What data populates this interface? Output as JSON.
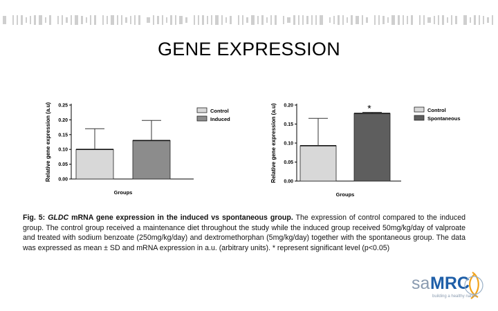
{
  "slide": {
    "title": "GENE EXPRESSION",
    "caption": {
      "label_prefix": "Fig. 5: ",
      "gene": "GLDC",
      "label_suffix": " mRNA gene expression in the induced vs spontaneous group.",
      "body": " The expression of control compared to the induced group. The control group received a maintenance diet throughout the study while the induced group received 50mg/kg/day of valproate and treated with sodium benzoate (250mg/kg/day) and dextromethorphan (5mg/kg/day) together with the spontaneous group. The data was expressed as mean ± SD and mRNA expression in a.u. (arbitrary units). * represent significant level (p<0.05)"
    },
    "logo": {
      "sa": "sa",
      "mrc": "MRC",
      "tagline": "building a healthy nation"
    }
  },
  "colors": {
    "control": "#d8d8d8",
    "induced": "#8c8c8c",
    "spontaneous": "#5e5e5e",
    "logo_blue": "#1f5fa8",
    "banner": "#cfcfcf"
  },
  "chart_data": [
    {
      "type": "bar",
      "categories": [
        "Control",
        "Induced"
      ],
      "values": [
        0.1,
        0.13
      ],
      "errors": [
        0.07,
        0.068
      ],
      "colors": [
        "#d8d8d8",
        "#8c8c8c"
      ],
      "legend": [
        "Control",
        "Induced"
      ],
      "legend_position": "top-right",
      "xlabel": "Groups",
      "ylabel": "Relative gene expression (a.u)",
      "ylim": [
        0,
        0.25
      ],
      "yticks": [
        "0.00",
        "0.05",
        "0.10",
        "0.15",
        "0.20",
        "0.25"
      ],
      "significance": [],
      "grid": false
    },
    {
      "type": "bar",
      "categories": [
        "Control",
        "Spontaneous"
      ],
      "values": [
        0.093,
        0.178
      ],
      "errors": [
        0.072,
        0.003
      ],
      "colors": [
        "#d8d8d8",
        "#5e5e5e"
      ],
      "legend": [
        "Control",
        "Spontaneous"
      ],
      "legend_position": "top-right",
      "xlabel": "Groups",
      "ylabel": "Relative gene expression (a.u)",
      "ylim": [
        0,
        0.2
      ],
      "yticks": [
        "0.00",
        "0.05",
        "0.10",
        "0.15",
        "0.20"
      ],
      "significance": [
        "",
        "*"
      ],
      "grid": false
    }
  ]
}
